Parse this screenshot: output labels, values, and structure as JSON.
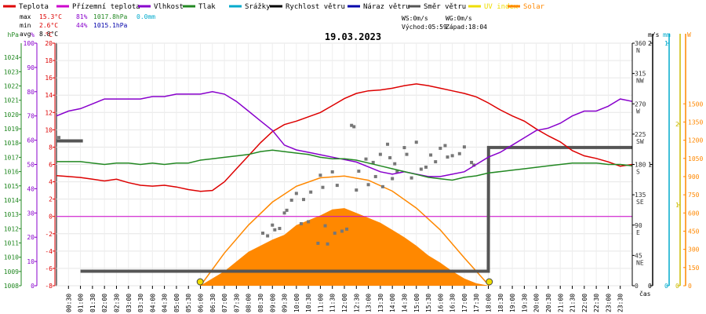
{
  "chart_data": {
    "type": "line",
    "title": "19.03.2023",
    "x_unit_label": "čas",
    "x_ticks": [
      "00:30",
      "01:00",
      "01:30",
      "02:00",
      "02:30",
      "03:00",
      "03:30",
      "04:00",
      "04:30",
      "05:00",
      "05:30",
      "06:00",
      "06:30",
      "07:00",
      "07:30",
      "08:00",
      "08:30",
      "09:00",
      "09:30",
      "10:00",
      "10:30",
      "11:00",
      "11:30",
      "12:00",
      "12:30",
      "13:00",
      "13:30",
      "14:00",
      "14:30",
      "15:00",
      "15:30",
      "16:00",
      "16:30",
      "17:00",
      "17:30",
      "18:00",
      "18:30",
      "19:00",
      "19:30",
      "20:00",
      "20:30",
      "21:00",
      "21:30",
      "22:00",
      "22:30",
      "23:00",
      "23:30"
    ],
    "xlim": [
      0,
      24
    ],
    "legend": [
      {
        "name": "Teplota",
        "color": "#dd0000"
      },
      {
        "name": "Přízemní teplota",
        "color": "#cc00cc"
      },
      {
        "name": "Vlhkost",
        "color": "#8800cc"
      },
      {
        "name": "Tlak",
        "color": "#228822"
      },
      {
        "name": "Srážky",
        "color": "#00aacc"
      },
      {
        "name": "Rychlost větru",
        "color": "#000000"
      },
      {
        "name": "Náraz větru",
        "color": "#0000aa"
      },
      {
        "name": "Směr větru",
        "color": "#555555"
      },
      {
        "name": "UV index",
        "color": "#eedd00"
      },
      {
        "name": "Solar",
        "color": "#ff8800"
      }
    ],
    "stats": {
      "max_label": "max",
      "max_temp": "15.3°C",
      "max_hum": "81%",
      "max_press": "1017.8hPa",
      "max_rain": "0.0mm",
      "min_label": "min",
      "min_temp": "2.6°C",
      "min_hum": "44%",
      "min_press": "1015.1hPa",
      "avg_label": "avg",
      "avg_temp": "8.8°C",
      "ws": "WS:0m/s",
      "wg": "WG:0m/s",
      "sunrise": "Východ:05:59",
      "sunset": "Západ:18:04"
    },
    "axes": {
      "pressure": {
        "unit": "hPa",
        "ylim": [
          1008,
          1025
        ],
        "ticks": [
          1008,
          1009,
          1010,
          1011,
          1012,
          1013,
          1014,
          1015,
          1016,
          1017,
          1018,
          1019,
          1020,
          1021,
          1022,
          1023,
          1024
        ],
        "color": "#228822"
      },
      "humidity": {
        "unit": "%",
        "ylim": [
          0,
          100
        ],
        "ticks": [
          0,
          10,
          20,
          30,
          40,
          50,
          60,
          70,
          80,
          90,
          100
        ],
        "color": "#8800cc"
      },
      "temperature": {
        "unit": "°C",
        "ylim": [
          -8,
          20
        ],
        "ticks": [
          -8,
          -6,
          -4,
          -2,
          0,
          2,
          4,
          6,
          8,
          10,
          12,
          14,
          16,
          18,
          20
        ],
        "color": "#dd0000"
      },
      "wind_dir": {
        "ylim": [
          0,
          360
        ],
        "ticks": [
          {
            "v": 360,
            "l": "360",
            "d": "N"
          },
          {
            "v": 315,
            "l": "315",
            "d": "NW"
          },
          {
            "v": 270,
            "l": "270",
            "d": "W"
          },
          {
            "v": 225,
            "l": "225",
            "d": "SW"
          },
          {
            "v": 180,
            "l": "180",
            "d": "S"
          },
          {
            "v": 135,
            "l": "135",
            "d": "SE"
          },
          {
            "v": 90,
            "l": "90",
            "d": "E"
          },
          {
            "v": 45,
            "l": "45",
            "d": "NE"
          },
          {
            "v": 0,
            "l": "0",
            "d": ""
          }
        ],
        "color": "#333333"
      },
      "wind_speed": {
        "unit": "m/s",
        "ylim": [
          0,
          2
        ],
        "ticks": [
          0,
          1,
          2
        ],
        "color": "#000000"
      },
      "rain": {
        "unit": "mm",
        "ylim": [
          0,
          1
        ],
        "ticks": [
          0,
          1
        ],
        "color": "#00aacc"
      },
      "solar": {
        "unit": "W",
        "ylim": [
          0,
          2000
        ],
        "ticks": [
          0,
          150,
          300,
          450,
          600,
          750,
          900,
          1050,
          1200,
          1350,
          1500
        ],
        "color": "#ff8800"
      },
      "uv": {
        "ylim": [
          0,
          3
        ],
        "ticks": [
          0,
          1,
          2
        ],
        "color": "#ccbb00"
      }
    },
    "series": [
      {
        "name": "Teplota",
        "axis": "temperature",
        "color": "#dd0000",
        "points": [
          [
            0,
            4.7
          ],
          [
            0.5,
            4.6
          ],
          [
            1,
            4.5
          ],
          [
            1.5,
            4.3
          ],
          [
            2,
            4.1
          ],
          [
            2.5,
            4.3
          ],
          [
            3,
            3.9
          ],
          [
            3.5,
            3.6
          ],
          [
            4,
            3.5
          ],
          [
            4.5,
            3.6
          ],
          [
            5,
            3.4
          ],
          [
            5.5,
            3.1
          ],
          [
            6,
            2.9
          ],
          [
            6.5,
            3.0
          ],
          [
            7,
            4.0
          ],
          [
            7.5,
            5.5
          ],
          [
            8,
            7.0
          ],
          [
            8.5,
            8.5
          ],
          [
            9,
            9.8
          ],
          [
            9.5,
            10.6
          ],
          [
            10,
            11.0
          ],
          [
            10.5,
            11.5
          ],
          [
            11,
            12.0
          ],
          [
            11.5,
            12.8
          ],
          [
            12,
            13.6
          ],
          [
            12.5,
            14.2
          ],
          [
            13,
            14.5
          ],
          [
            13.5,
            14.6
          ],
          [
            14,
            14.8
          ],
          [
            14.5,
            15.1
          ],
          [
            15,
            15.3
          ],
          [
            15.5,
            15.1
          ],
          [
            16,
            14.8
          ],
          [
            16.5,
            14.5
          ],
          [
            17,
            14.2
          ],
          [
            17.5,
            13.8
          ],
          [
            18,
            13.1
          ],
          [
            18.5,
            12.3
          ],
          [
            19,
            11.6
          ],
          [
            19.5,
            11.0
          ],
          [
            20,
            10.1
          ],
          [
            20.5,
            9.3
          ],
          [
            21,
            8.6
          ],
          [
            21.5,
            7.6
          ],
          [
            22,
            7.0
          ],
          [
            22.5,
            6.7
          ],
          [
            23,
            6.3
          ],
          [
            23.5,
            5.8
          ],
          [
            24,
            6.0
          ]
        ]
      },
      {
        "name": "Přízemní teplota",
        "axis": "temperature",
        "color": "#cc00cc",
        "points": [
          [
            0,
            0
          ],
          [
            24,
            0
          ]
        ]
      },
      {
        "name": "Vlhkost",
        "axis": "humidity",
        "color": "#8800cc",
        "points": [
          [
            0,
            70
          ],
          [
            0.5,
            72
          ],
          [
            1,
            73
          ],
          [
            1.5,
            75
          ],
          [
            2,
            77
          ],
          [
            2.5,
            77
          ],
          [
            3,
            77
          ],
          [
            3.5,
            77
          ],
          [
            4,
            78
          ],
          [
            4.5,
            78
          ],
          [
            5,
            79
          ],
          [
            5.5,
            79
          ],
          [
            6,
            79
          ],
          [
            6.5,
            80
          ],
          [
            7,
            79
          ],
          [
            7.5,
            76
          ],
          [
            8,
            72
          ],
          [
            8.5,
            68
          ],
          [
            9,
            64
          ],
          [
            9.5,
            58
          ],
          [
            10,
            56
          ],
          [
            10.5,
            55
          ],
          [
            11,
            54
          ],
          [
            11.5,
            53
          ],
          [
            12,
            52
          ],
          [
            12.5,
            51
          ],
          [
            13,
            49
          ],
          [
            13.5,
            47
          ],
          [
            14,
            46
          ],
          [
            14.5,
            47
          ],
          [
            15,
            46
          ],
          [
            15.5,
            45
          ],
          [
            16,
            45
          ],
          [
            16.5,
            46
          ],
          [
            17,
            47
          ],
          [
            17.5,
            50
          ],
          [
            18,
            53
          ],
          [
            18.5,
            55
          ],
          [
            19,
            58
          ],
          [
            19.5,
            61
          ],
          [
            20,
            64
          ],
          [
            20.5,
            65
          ],
          [
            21,
            67
          ],
          [
            21.5,
            70
          ],
          [
            22,
            72
          ],
          [
            22.5,
            72
          ],
          [
            23,
            74
          ],
          [
            23.5,
            77
          ],
          [
            24,
            76
          ]
        ]
      },
      {
        "name": "Tlak",
        "axis": "pressure",
        "color": "#228822",
        "points": [
          [
            0,
            1016.7
          ],
          [
            0.5,
            1016.7
          ],
          [
            1,
            1016.7
          ],
          [
            1.5,
            1016.6
          ],
          [
            2,
            1016.5
          ],
          [
            2.5,
            1016.6
          ],
          [
            3,
            1016.6
          ],
          [
            3.5,
            1016.5
          ],
          [
            4,
            1016.6
          ],
          [
            4.5,
            1016.5
          ],
          [
            5,
            1016.6
          ],
          [
            5.5,
            1016.6
          ],
          [
            6,
            1016.8
          ],
          [
            6.5,
            1016.9
          ],
          [
            7,
            1017.0
          ],
          [
            7.5,
            1017.1
          ],
          [
            8,
            1017.2
          ],
          [
            8.5,
            1017.4
          ],
          [
            9,
            1017.5
          ],
          [
            9.5,
            1017.4
          ],
          [
            10,
            1017.3
          ],
          [
            10.5,
            1017.2
          ],
          [
            11,
            1017.0
          ],
          [
            11.5,
            1016.9
          ],
          [
            12,
            1016.9
          ],
          [
            12.5,
            1016.8
          ],
          [
            13,
            1016.6
          ],
          [
            13.5,
            1016.4
          ],
          [
            14,
            1016.2
          ],
          [
            14.5,
            1016.0
          ],
          [
            15,
            1015.8
          ],
          [
            15.5,
            1015.6
          ],
          [
            16,
            1015.5
          ],
          [
            16.5,
            1015.4
          ],
          [
            17,
            1015.6
          ],
          [
            17.5,
            1015.7
          ],
          [
            18,
            1015.9
          ],
          [
            18.5,
            1016.0
          ],
          [
            19,
            1016.1
          ],
          [
            19.5,
            1016.2
          ],
          [
            20,
            1016.3
          ],
          [
            20.5,
            1016.4
          ],
          [
            21,
            1016.5
          ],
          [
            21.5,
            1016.6
          ],
          [
            22,
            1016.6
          ],
          [
            22.5,
            1016.6
          ],
          [
            23,
            1016.5
          ],
          [
            23.5,
            1016.5
          ],
          [
            24,
            1016.4
          ]
        ]
      },
      {
        "name": "Rychlost větru",
        "axis": "wind_speed",
        "color": "#555555",
        "points": [
          [
            1,
            0.12
          ],
          [
            6.5,
            0.12
          ],
          [
            7.5,
            0.12
          ],
          [
            9,
            0.12
          ],
          [
            18,
            0.12
          ],
          [
            18.01,
            1.14
          ],
          [
            24,
            1.14
          ]
        ]
      },
      {
        "name": "Solar",
        "axis": "solar",
        "color": "#ff8800",
        "points": [
          [
            5.99,
            0
          ],
          [
            7,
            120
          ],
          [
            8,
            280
          ],
          [
            9,
            380
          ],
          [
            9.5,
            420
          ],
          [
            10,
            500
          ],
          [
            10.5,
            540
          ],
          [
            11,
            580
          ],
          [
            11.5,
            630
          ],
          [
            12,
            640
          ],
          [
            12.5,
            600
          ],
          [
            13,
            560
          ],
          [
            13.5,
            520
          ],
          [
            14,
            460
          ],
          [
            14.5,
            400
          ],
          [
            15,
            330
          ],
          [
            15.5,
            250
          ],
          [
            16,
            190
          ],
          [
            16.5,
            120
          ],
          [
            17,
            60
          ],
          [
            17.5,
            20
          ],
          [
            18.04,
            0
          ]
        ]
      },
      {
        "name": "Solar max",
        "axis": "solar",
        "color": "#ff8800",
        "points": [
          [
            6.0,
            0
          ],
          [
            7,
            270
          ],
          [
            8,
            500
          ],
          [
            9,
            690
          ],
          [
            10,
            820
          ],
          [
            11,
            890
          ],
          [
            12,
            905
          ],
          [
            13,
            870
          ],
          [
            14,
            780
          ],
          [
            15,
            640
          ],
          [
            16,
            460
          ],
          [
            17,
            230
          ],
          [
            18.04,
            0
          ]
        ]
      }
    ],
    "wind_direction_points": [
      [
        0.1,
        220
      ],
      [
        0.2,
        215
      ],
      [
        8.6,
        78
      ],
      [
        8.8,
        74
      ],
      [
        9,
        90
      ],
      [
        9.1,
        83
      ],
      [
        9.3,
        85
      ],
      [
        9.5,
        108
      ],
      [
        9.6,
        112
      ],
      [
        9.8,
        127
      ],
      [
        10,
        137
      ],
      [
        10.2,
        92
      ],
      [
        10.3,
        128
      ],
      [
        10.5,
        95
      ],
      [
        10.6,
        139
      ],
      [
        10.9,
        63
      ],
      [
        11,
        164
      ],
      [
        11.1,
        146
      ],
      [
        11.2,
        89
      ],
      [
        11.3,
        62
      ],
      [
        11.5,
        169
      ],
      [
        11.6,
        78
      ],
      [
        11.7,
        149
      ],
      [
        11.9,
        81
      ],
      [
        12.1,
        84
      ],
      [
        12.3,
        238
      ],
      [
        12.4,
        236
      ],
      [
        12.5,
        142
      ],
      [
        12.6,
        170
      ],
      [
        12.9,
        188
      ],
      [
        13,
        150
      ],
      [
        13.2,
        183
      ],
      [
        13.3,
        162
      ],
      [
        13.5,
        195
      ],
      [
        13.6,
        147
      ],
      [
        13.8,
        210
      ],
      [
        13.9,
        190
      ],
      [
        14,
        159
      ],
      [
        14.1,
        181
      ],
      [
        14.2,
        169
      ],
      [
        14.5,
        205
      ],
      [
        14.6,
        195
      ],
      [
        14.8,
        160
      ],
      [
        15,
        213
      ],
      [
        15.2,
        173
      ],
      [
        15.4,
        176
      ],
      [
        15.6,
        194
      ],
      [
        15.8,
        184
      ],
      [
        16,
        204
      ],
      [
        16.2,
        208
      ],
      [
        16.3,
        191
      ],
      [
        16.5,
        193
      ],
      [
        16.8,
        196
      ],
      [
        17,
        206
      ],
      [
        17.3,
        183
      ],
      [
        17.4,
        179
      ]
    ],
    "markers": [
      {
        "label": "sunrise",
        "x": 5.99
      },
      {
        "label": "sunset",
        "x": 18.04
      }
    ]
  }
}
